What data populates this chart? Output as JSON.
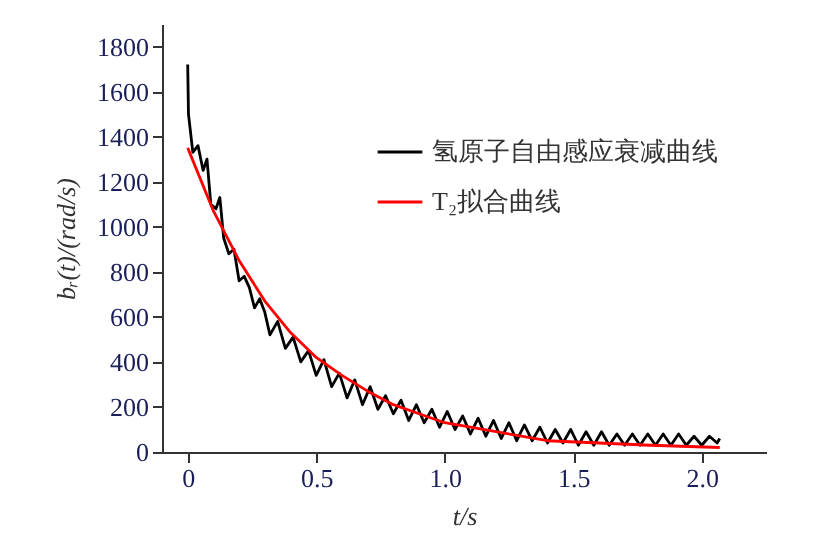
{
  "chart_data": {
    "type": "line",
    "xlabel": "t/s",
    "ylabel": "bᵣ(t)/(rad/s)",
    "xlim": [
      -0.1,
      2.25
    ],
    "ylim": [
      0,
      1900
    ],
    "xticks": [
      0,
      0.5,
      {
        "value": 1,
        "label": "1.0"
      },
      1.5,
      {
        "value": 2,
        "label": "2.0"
      }
    ],
    "yticks": [
      0,
      200,
      400,
      600,
      800,
      1000,
      1200,
      1400,
      1600,
      1800
    ],
    "grid": false,
    "legend": "top right",
    "line_style": "solid",
    "marker": "none",
    "series": [
      {
        "name": "氢原子自由感应衰减曲线",
        "color": "#000000",
        "x": [
          0,
          0.003,
          0.02,
          0.04,
          0.06,
          0.075,
          0.09,
          0.11,
          0.125,
          0.14,
          0.16,
          0.18,
          0.2,
          0.22,
          0.24,
          0.26,
          0.28,
          0.3,
          0.32,
          0.35,
          0.38,
          0.41,
          0.44,
          0.47,
          0.5,
          0.53,
          0.56,
          0.59,
          0.62,
          0.65,
          0.68,
          0.71,
          0.74,
          0.77,
          0.8,
          0.83,
          0.86,
          0.89,
          0.92,
          0.95,
          0.98,
          1.01,
          1.04,
          1.07,
          1.1,
          1.13,
          1.16,
          1.19,
          1.22,
          1.25,
          1.28,
          1.31,
          1.34,
          1.37,
          1.4,
          1.43,
          1.46,
          1.49,
          1.52,
          1.55,
          1.58,
          1.61,
          1.64,
          1.67,
          1.7,
          1.73,
          1.76,
          1.79,
          1.82,
          1.85,
          1.88,
          1.91,
          1.94,
          1.97,
          2.0,
          2.03,
          2.06,
          2.07
        ],
        "values": [
          1720,
          1500,
          1330,
          1360,
          1250,
          1300,
          1100,
          1080,
          1130,
          950,
          880,
          900,
          760,
          780,
          730,
          640,
          680,
          620,
          520,
          580,
          460,
          510,
          400,
          450,
          340,
          410,
          290,
          350,
          240,
          320,
          210,
          290,
          190,
          250,
          170,
          230,
          140,
          210,
          130,
          190,
          110,
          180,
          100,
          160,
          80,
          150,
          70,
          140,
          60,
          130,
          50,
          120,
          50,
          110,
          40,
          100,
          40,
          100,
          30,
          90,
          30,
          90,
          30,
          80,
          30,
          80,
          30,
          80,
          30,
          80,
          30,
          80,
          30,
          70,
          30,
          70,
          40,
          60
        ]
      },
      {
        "name": "T₂拟合曲线",
        "color": "#ff0000",
        "x": [
          0,
          0.1,
          0.2,
          0.3,
          0.4,
          0.5,
          0.6,
          0.7,
          0.8,
          0.9,
          1.0,
          1.2,
          1.4,
          1.6,
          1.8,
          2.07
        ],
        "values": [
          1350,
          1070,
          850,
          670,
          530,
          420,
          340,
          270,
          210,
          170,
          130,
          90,
          50,
          40,
          30,
          20
        ]
      }
    ]
  }
}
